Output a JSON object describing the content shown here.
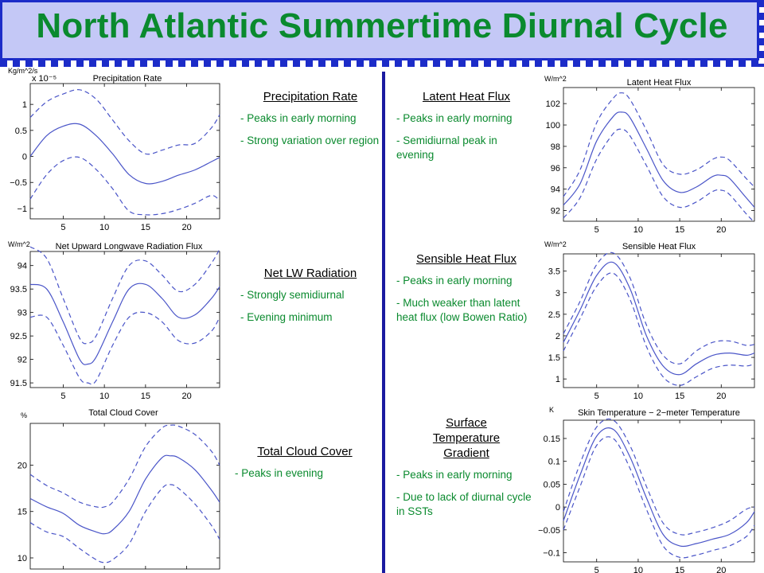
{
  "slide": {
    "title": "North Atlantic Summertime Diurnal Cycle"
  },
  "sections": [
    {
      "heading": "Precipitation Rate",
      "bullets": [
        "- Peaks in early morning",
        "- Strong variation over region"
      ]
    },
    {
      "heading": "Net LW Radiation",
      "bullets": [
        "- Strongly semidiurnal",
        "- Evening minimum"
      ]
    },
    {
      "heading": "Total Cloud Cover",
      "bullets": [
        "- Peaks in evening"
      ]
    },
    {
      "heading": "Latent Heat Flux",
      "bullets": [
        "- Peaks in early morning",
        "- Semidiurnal peak in evening"
      ]
    },
    {
      "heading": "Sensible Heat Flux",
      "bullets": [
        "- Peaks in early morning",
        "- Much weaker than latent heat flux (low Bowen Ratio)"
      ]
    },
    {
      "heading": "Surface Temperature Gradient",
      "bullets": [
        "- Peaks in early morning",
        "- Due to lack of diurnal cycle in SSTs"
      ]
    }
  ],
  "colors": {
    "title": "#0a8a2e",
    "header_bg": "#c4c8f6",
    "accent": "#1c2cc8",
    "series": "#4a55c8",
    "bullet": "#0a8a2e"
  },
  "chart_data": [
    {
      "type": "line",
      "title": "Precipitation Rate",
      "unit": "Kg/m^2/s",
      "multiplier": "x 10⁻⁵",
      "xlim": [
        1,
        24
      ],
      "ylim": [
        -1.2,
        1.4
      ],
      "xticks": [
        5,
        10,
        15,
        20
      ],
      "xtick_labels": [
        "5",
        "10",
        "15",
        "20"
      ],
      "yticks": [
        -1,
        -0.5,
        0,
        0.5,
        1
      ],
      "ytick_labels": [
        "−1",
        "−0.5",
        "0",
        "0.5",
        "1"
      ],
      "x": [
        1,
        3,
        5,
        7,
        9,
        11,
        13,
        15,
        17,
        19,
        21,
        23,
        24
      ],
      "series": [
        {
          "style": "solid",
          "values": [
            0.0,
            0.4,
            0.58,
            0.62,
            0.4,
            0.05,
            -0.35,
            -0.52,
            -0.48,
            -0.36,
            -0.26,
            -0.1,
            -0.02
          ]
        },
        {
          "style": "dashed",
          "values": [
            0.75,
            1.05,
            1.2,
            1.28,
            1.1,
            0.7,
            0.3,
            0.05,
            0.12,
            0.22,
            0.25,
            0.55,
            0.8
          ]
        },
        {
          "style": "dashed",
          "values": [
            -0.82,
            -0.35,
            -0.08,
            -0.02,
            -0.25,
            -0.62,
            -1.05,
            -1.12,
            -1.1,
            -1.02,
            -0.9,
            -0.75,
            -0.85
          ]
        }
      ]
    },
    {
      "type": "line",
      "title": "Net Upward Longwave Radiation Flux",
      "unit": "W/m^2",
      "xlim": [
        1,
        24
      ],
      "ylim": [
        91.4,
        94.3
      ],
      "xticks": [
        5,
        10,
        15,
        20
      ],
      "xtick_labels": [
        "5",
        "10",
        "15",
        "20"
      ],
      "yticks": [
        91.5,
        92,
        92.5,
        93,
        93.5,
        94
      ],
      "ytick_labels": [
        "91.5",
        "92",
        "92.5",
        "93",
        "93.5",
        "94"
      ],
      "x": [
        1,
        3,
        5,
        7,
        8,
        9,
        11,
        13,
        15,
        17,
        19,
        21,
        23,
        24
      ],
      "series": [
        {
          "style": "solid",
          "values": [
            93.6,
            93.5,
            92.8,
            92.0,
            91.9,
            92.05,
            92.8,
            93.5,
            93.6,
            93.3,
            92.9,
            92.95,
            93.3,
            93.55
          ]
        },
        {
          "style": "dashed",
          "values": [
            94.4,
            94.15,
            93.3,
            92.45,
            92.35,
            92.5,
            93.3,
            94.0,
            94.1,
            93.8,
            93.45,
            93.6,
            94.05,
            94.35
          ]
        },
        {
          "style": "dashed",
          "values": [
            92.9,
            92.9,
            92.3,
            91.6,
            91.5,
            91.55,
            92.3,
            92.9,
            93.0,
            92.8,
            92.4,
            92.35,
            92.6,
            92.9
          ]
        }
      ]
    },
    {
      "type": "line",
      "title": "Total Cloud Cover",
      "unit": "%",
      "xlim": [
        1,
        24
      ],
      "ylim": [
        8.8,
        24.5
      ],
      "xticks": [
        5,
        10,
        15,
        20
      ],
      "xtick_labels": [
        "5",
        "10",
        "15",
        "20"
      ],
      "yticks": [
        10,
        15,
        20
      ],
      "ytick_labels": [
        "10",
        "15",
        "20"
      ],
      "x": [
        1,
        3,
        5,
        7,
        9,
        10,
        11,
        13,
        15,
        17,
        18,
        19,
        21,
        23,
        24
      ],
      "series": [
        {
          "style": "solid",
          "values": [
            16.4,
            15.5,
            14.8,
            13.5,
            12.8,
            12.6,
            13.0,
            15.0,
            18.5,
            20.8,
            21.0,
            20.8,
            19.5,
            17.3,
            16.0
          ]
        },
        {
          "style": "dashed",
          "values": [
            19.0,
            17.8,
            17.0,
            16.0,
            15.5,
            15.5,
            16.0,
            18.5,
            22.0,
            24.0,
            24.3,
            24.2,
            23.3,
            21.5,
            20.0
          ]
        },
        {
          "style": "dashed",
          "values": [
            13.8,
            12.8,
            12.3,
            11.0,
            9.8,
            9.5,
            9.8,
            11.5,
            15.0,
            17.5,
            17.9,
            17.5,
            15.8,
            13.5,
            12.0
          ]
        }
      ]
    },
    {
      "type": "line",
      "title": "Latent Heat Flux",
      "unit": "W/m^2",
      "xlim": [
        1,
        24
      ],
      "ylim": [
        91,
        103.5
      ],
      "xticks": [
        5,
        10,
        15,
        20
      ],
      "xtick_labels": [
        "5",
        "10",
        "15",
        "20"
      ],
      "yticks": [
        92,
        94,
        96,
        98,
        100,
        102
      ],
      "ytick_labels": [
        "92",
        "94",
        "96",
        "98",
        "100",
        "102"
      ],
      "x": [
        1,
        3,
        5,
        7,
        8,
        9,
        11,
        13,
        15,
        17,
        19,
        20,
        21,
        23,
        24
      ],
      "series": [
        {
          "style": "solid",
          "values": [
            92.5,
            94.5,
            98.5,
            100.8,
            101.2,
            100.7,
            97.8,
            94.8,
            93.7,
            94.2,
            95.2,
            95.3,
            95.0,
            93.2,
            92.3
          ]
        },
        {
          "style": "dashed",
          "values": [
            93.3,
            95.8,
            100.2,
            102.5,
            103.0,
            102.4,
            99.5,
            96.3,
            95.4,
            95.8,
            96.8,
            97.0,
            96.7,
            95.0,
            94.2
          ]
        },
        {
          "style": "dashed",
          "values": [
            91.3,
            93.2,
            96.8,
            99.2,
            99.6,
            99.0,
            96.2,
            93.3,
            92.3,
            92.8,
            93.8,
            93.9,
            93.5,
            91.7,
            90.9
          ]
        }
      ]
    },
    {
      "type": "line",
      "title": "Sensible Heat Flux",
      "unit": "W/m^2",
      "xlim": [
        1,
        24
      ],
      "ylim": [
        0.8,
        3.9
      ],
      "xticks": [
        5,
        10,
        15,
        20
      ],
      "xtick_labels": [
        "5",
        "10",
        "15",
        "20"
      ],
      "yticks": [
        1,
        1.5,
        2,
        2.5,
        3,
        3.5
      ],
      "ytick_labels": [
        "1",
        "1.5",
        "2",
        "2.5",
        "3",
        "3.5"
      ],
      "x": [
        1,
        3,
        5,
        7,
        9,
        11,
        13,
        15,
        17,
        19,
        21,
        23,
        24
      ],
      "series": [
        {
          "style": "solid",
          "values": [
            1.85,
            2.6,
            3.4,
            3.7,
            3.1,
            2.0,
            1.3,
            1.1,
            1.35,
            1.55,
            1.6,
            1.55,
            1.6
          ]
        },
        {
          "style": "dashed",
          "values": [
            2.05,
            2.8,
            3.65,
            3.92,
            3.35,
            2.25,
            1.55,
            1.35,
            1.65,
            1.85,
            1.88,
            1.78,
            1.8
          ]
        },
        {
          "style": "dashed",
          "values": [
            1.65,
            2.4,
            3.15,
            3.45,
            2.85,
            1.75,
            1.05,
            0.85,
            1.05,
            1.25,
            1.32,
            1.3,
            1.35
          ]
        }
      ]
    },
    {
      "type": "line",
      "title": "Skin Temperature − 2−meter Temperature",
      "unit": "K",
      "xlim": [
        1,
        24
      ],
      "ylim": [
        -0.12,
        0.19
      ],
      "xticks": [
        5,
        10,
        15,
        20
      ],
      "xtick_labels": [
        "5",
        "10",
        "15",
        "20"
      ],
      "yticks": [
        -0.1,
        -0.05,
        0,
        0.05,
        0.1,
        0.15
      ],
      "ytick_labels": [
        "−0.1",
        "−0.05",
        "0",
        "0.05",
        "0.1",
        "0.15"
      ],
      "x": [
        1,
        3,
        5,
        7,
        9,
        11,
        13,
        15,
        17,
        19,
        21,
        23,
        24
      ],
      "series": [
        {
          "style": "solid",
          "values": [
            -0.03,
            0.07,
            0.155,
            0.17,
            0.11,
            0.02,
            -0.06,
            -0.085,
            -0.08,
            -0.07,
            -0.06,
            -0.035,
            -0.01
          ]
        },
        {
          "style": "dashed",
          "values": [
            -0.01,
            0.095,
            0.175,
            0.19,
            0.135,
            0.045,
            -0.035,
            -0.06,
            -0.055,
            -0.045,
            -0.03,
            -0.005,
            0.0
          ]
        },
        {
          "style": "dashed",
          "values": [
            -0.05,
            0.045,
            0.135,
            0.15,
            0.085,
            -0.005,
            -0.085,
            -0.11,
            -0.105,
            -0.095,
            -0.085,
            -0.065,
            -0.04
          ]
        }
      ]
    }
  ]
}
